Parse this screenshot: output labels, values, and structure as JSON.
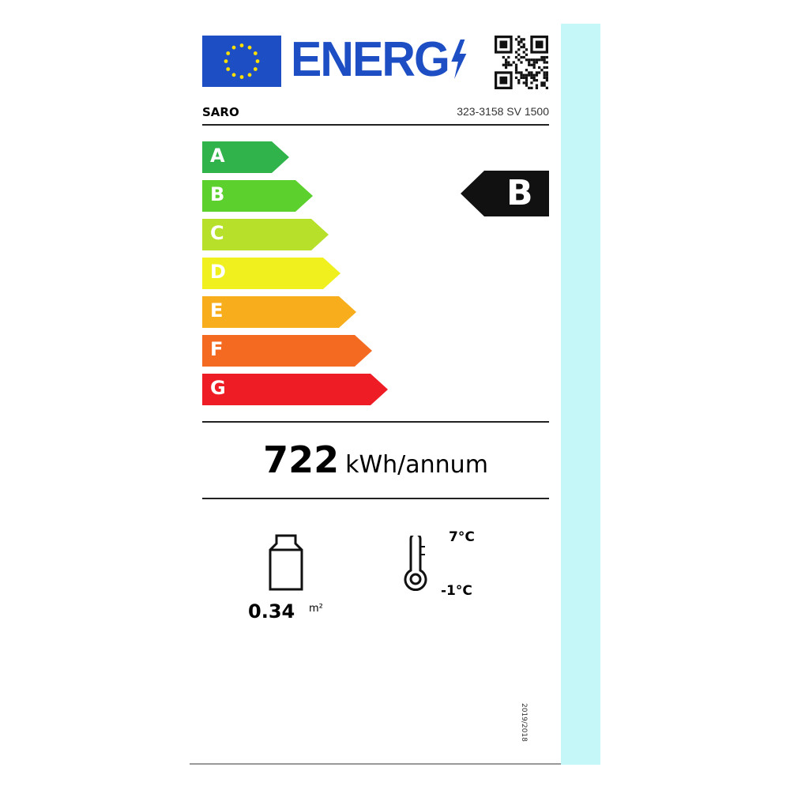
{
  "logo": {
    "text": "ENERG",
    "icon": "lightning-icon"
  },
  "supplier": "SARO",
  "model": "323-3158 SV 1500",
  "classes": [
    {
      "letter": "A",
      "color": "#2fb34a"
    },
    {
      "letter": "B",
      "color": "#5cd12e"
    },
    {
      "letter": "C",
      "color": "#b6e02a"
    },
    {
      "letter": "D",
      "color": "#f0f01e"
    },
    {
      "letter": "E",
      "color": "#f7ad1c"
    },
    {
      "letter": "F",
      "color": "#f46a20"
    },
    {
      "letter": "G",
      "color": "#ee1c25"
    }
  ],
  "rating": "B",
  "energy": {
    "value": "722",
    "unit": "kWh/annum"
  },
  "display_area": {
    "value": "0.34",
    "unit": "m²"
  },
  "temperature": {
    "max": "7°C",
    "min": "-1°C"
  },
  "regulation": "2019/2018"
}
